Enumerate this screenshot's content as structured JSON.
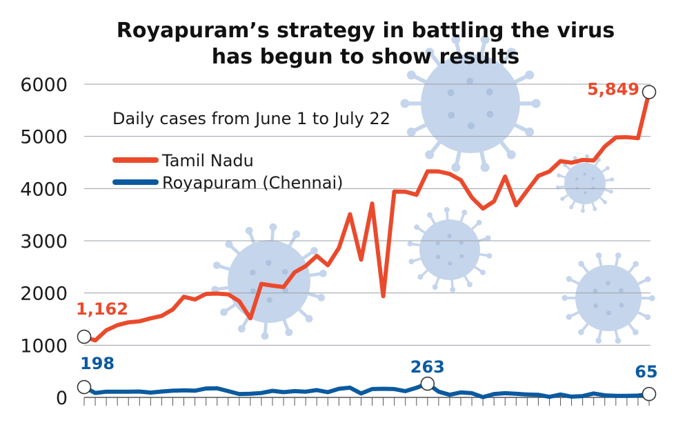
{
  "chart_data": {
    "type": "line",
    "title_lines": [
      "Royapuram’s strategy in battling the virus",
      "has begun to show results"
    ],
    "subtitle": "Daily cases from June 1 to July 22",
    "ylim": [
      0,
      6000
    ],
    "yticks": [
      0,
      1000,
      2000,
      3000,
      4000,
      5000,
      6000
    ],
    "ytick_labels": [
      "0",
      "1000",
      "2000",
      "3000",
      "4000",
      "5000",
      "6000"
    ],
    "grid": true,
    "legend_position": "top-left",
    "series": [
      {
        "name": "Tamil Nadu",
        "color": "#ea4a2c",
        "values": [
          1162,
          1091,
          1286,
          1384,
          1438,
          1458,
          1515,
          1562,
          1685,
          1927,
          1875,
          1982,
          1989,
          1974,
          1843,
          1515,
          2174,
          2141,
          2115,
          2396,
          2516,
          2710,
          2532,
          2865,
          3509,
          2639,
          3713,
          1939,
          3943,
          3940,
          3882,
          4329,
          4328,
          4280,
          4163,
          3827,
          3617,
          3756,
          4231,
          3680,
          3965,
          4244,
          4328,
          4526,
          4496,
          4549,
          4538,
          4807,
          4979,
          4985,
          4965,
          5849
        ]
      },
      {
        "name": "Royapuram (Chennai)",
        "color": "#0b5aa0",
        "values": [
          198,
          84,
          110,
          110,
          108,
          112,
          92,
          112,
          128,
          135,
          128,
          170,
          175,
          120,
          65,
          70,
          85,
          125,
          100,
          120,
          110,
          140,
          100,
          165,
          186,
          75,
          160,
          165,
          160,
          120,
          185,
          263,
          110,
          50,
          95,
          80,
          5,
          65,
          80,
          70,
          55,
          50,
          10,
          55,
          15,
          25,
          75,
          40,
          30,
          30,
          35,
          65
        ]
      }
    ],
    "annotations": [
      {
        "series": 0,
        "index": 0,
        "label": "1,162",
        "color": "#ea4a2c"
      },
      {
        "series": 0,
        "index": 51,
        "label": "5,849",
        "color": "#ea4a2c"
      },
      {
        "series": 1,
        "index": 0,
        "label": "198",
        "color": "#0b5aa0"
      },
      {
        "series": 1,
        "index": 31,
        "label": "263",
        "color": "#0b5aa0"
      },
      {
        "series": 1,
        "index": 51,
        "label": "65",
        "color": "#0b5aa0"
      }
    ],
    "x_tick_count": 52,
    "colors": {
      "grid": "#9aa0a6",
      "virus": "#c2d3ea",
      "virus_detail": "#a9bfdd"
    }
  }
}
